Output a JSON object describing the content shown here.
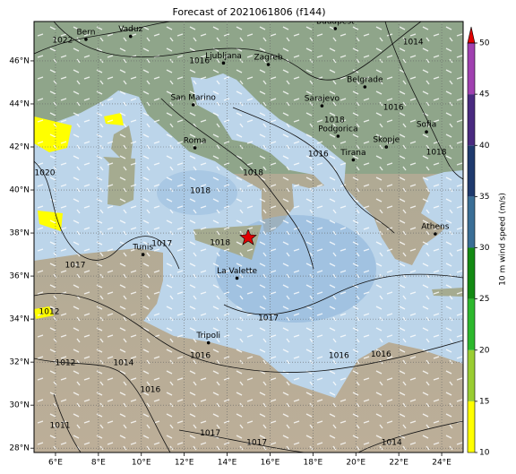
{
  "title": "Forecast of 2021061806 (f144)",
  "map": {
    "lon_lim": [
      5,
      25
    ],
    "lat_lim": [
      27.8,
      47.83
    ],
    "lon_ticks": [
      {
        "value": 6,
        "label": "6°E"
      },
      {
        "value": 8,
        "label": "8°E"
      },
      {
        "value": 10,
        "label": "10°E"
      },
      {
        "value": 12,
        "label": "12°E"
      },
      {
        "value": 14,
        "label": "14°E"
      },
      {
        "value": 16,
        "label": "16°E"
      },
      {
        "value": 18,
        "label": "18°E"
      },
      {
        "value": 20,
        "label": "20°E"
      },
      {
        "value": 22,
        "label": "22°E"
      },
      {
        "value": 24,
        "label": "24°E"
      }
    ],
    "lat_ticks": [
      {
        "value": 28,
        "label": "28°N"
      },
      {
        "value": 30,
        "label": "30°N"
      },
      {
        "value": 32,
        "label": "32°N"
      },
      {
        "value": 34,
        "label": "34°N"
      },
      {
        "value": 36,
        "label": "36°N"
      },
      {
        "value": 38,
        "label": "38°N"
      },
      {
        "value": 40,
        "label": "40°N"
      },
      {
        "value": 42,
        "label": "42°N"
      },
      {
        "value": 44,
        "label": "44°N"
      },
      {
        "value": 46,
        "label": "46°N"
      }
    ],
    "grid": true,
    "cities": [
      {
        "name": "Bern",
        "lon": 7.42,
        "lat": 47.0
      },
      {
        "name": "Vaduz",
        "lon": 9.5,
        "lat": 47.14
      },
      {
        "name": "Budapest",
        "lon": 19.04,
        "lat": 47.5
      },
      {
        "name": "Ljubljana",
        "lon": 13.83,
        "lat": 45.9
      },
      {
        "name": "Zagreb",
        "lon": 15.92,
        "lat": 45.83
      },
      {
        "name": "San Marino",
        "lon": 12.42,
        "lat": 43.96
      },
      {
        "name": "Belgrade",
        "lon": 20.42,
        "lat": 44.79
      },
      {
        "name": "Sarajevo",
        "lon": 18.42,
        "lat": 43.91
      },
      {
        "name": "Podgorica",
        "lon": 19.17,
        "lat": 42.5
      },
      {
        "name": "Roma",
        "lon": 12.5,
        "lat": 41.96
      },
      {
        "name": "Skopje",
        "lon": 21.42,
        "lat": 42.0
      },
      {
        "name": "Sofia",
        "lon": 23.29,
        "lat": 42.7
      },
      {
        "name": "Tirana",
        "lon": 19.88,
        "lat": 41.4
      },
      {
        "name": "Tunis",
        "lon": 10.08,
        "lat": 37.0
      },
      {
        "name": "Athens",
        "lon": 23.7,
        "lat": 37.96
      },
      {
        "name": "La Valette",
        "lon": 14.46,
        "lat": 35.9
      },
      {
        "name": "Tripoli",
        "lon": 13.13,
        "lat": 32.9
      }
    ],
    "contour_labels": [
      {
        "value": 1022,
        "lon": 6.33,
        "lat": 46.96
      },
      {
        "value": 1016,
        "lon": 12.71,
        "lat": 46.0
      },
      {
        "value": 1014,
        "lon": 22.67,
        "lat": 46.87
      },
      {
        "value": 1018,
        "lon": 19.0,
        "lat": 43.25
      },
      {
        "value": 1016,
        "lon": 18.25,
        "lat": 41.66
      },
      {
        "value": 1018,
        "lon": 15.21,
        "lat": 40.79
      },
      {
        "value": 1018,
        "lon": 12.75,
        "lat": 39.95
      },
      {
        "value": 1020,
        "lon": 5.5,
        "lat": 40.79
      },
      {
        "value": 1017,
        "lon": 10.96,
        "lat": 37.5
      },
      {
        "value": 1018,
        "lon": 13.67,
        "lat": 37.54
      },
      {
        "value": 1017,
        "lon": 6.92,
        "lat": 36.5
      },
      {
        "value": 1012,
        "lon": 5.71,
        "lat": 34.33
      },
      {
        "value": 1012,
        "lon": 6.46,
        "lat": 31.96
      },
      {
        "value": 1014,
        "lon": 9.17,
        "lat": 31.96
      },
      {
        "value": 1016,
        "lon": 10.42,
        "lat": 30.71
      },
      {
        "value": 1016,
        "lon": 12.75,
        "lat": 32.29
      },
      {
        "value": 1016,
        "lon": 19.21,
        "lat": 32.29
      },
      {
        "value": 1016,
        "lon": 21.17,
        "lat": 32.37
      },
      {
        "value": 1017,
        "lon": 15.92,
        "lat": 34.04
      },
      {
        "value": 1017,
        "lon": 13.21,
        "lat": 28.7
      },
      {
        "value": 1017,
        "lon": 15.38,
        "lat": 28.25
      },
      {
        "value": 1014,
        "lon": 21.67,
        "lat": 28.25
      },
      {
        "value": 1011,
        "lon": 6.21,
        "lat": 29.04
      },
      {
        "value": 1018,
        "lon": 23.75,
        "lat": 41.75
      },
      {
        "value": 1016,
        "lon": 21.75,
        "lat": 43.83
      }
    ]
  },
  "colorbar": {
    "label": "10 m wind speed (m/s)",
    "ticks": [
      10,
      15,
      20,
      25,
      30,
      35,
      40,
      45,
      50
    ],
    "colors": [
      "#ffff00",
      "#9acd32",
      "#2db82d",
      "#138a13",
      "#3a6e96",
      "#1f3a6e",
      "#4a2a80",
      "#a040b0"
    ],
    "extend_color": "#e00000"
  }
}
